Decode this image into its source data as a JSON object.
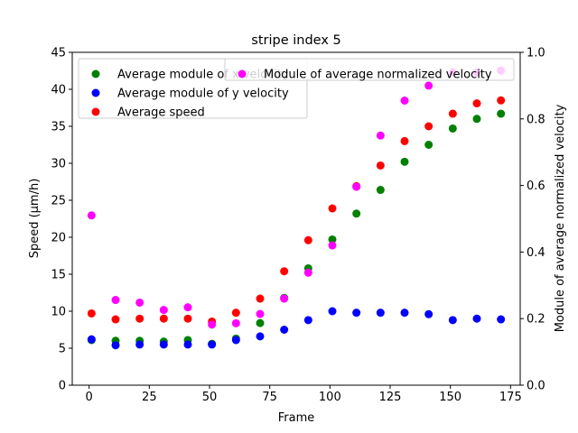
{
  "chart_data": {
    "type": "scatter",
    "title": "stripe index 5",
    "xlabel": "Frame",
    "ylabel": "Speed (μm/h)",
    "y2label": "Module of average normalized velocity",
    "xlim": [
      -7,
      179
    ],
    "ylim": [
      0,
      45
    ],
    "y2lim": [
      0.0,
      1.0
    ],
    "xticks": [
      0,
      25,
      50,
      75,
      100,
      125,
      150,
      175
    ],
    "xtick_labels": [
      "0",
      "25",
      "50",
      "75",
      "100",
      "125",
      "150",
      "175"
    ],
    "yticks": [
      0,
      5,
      10,
      15,
      20,
      25,
      30,
      35,
      40,
      45
    ],
    "ytick_labels": [
      "0",
      "5",
      "10",
      "15",
      "20",
      "25",
      "30",
      "35",
      "40",
      "45"
    ],
    "y2ticks": [
      0.0,
      0.2,
      0.4,
      0.6,
      0.8,
      1.0
    ],
    "y2tick_labels": [
      "0.0",
      "0.2",
      "0.4",
      "0.6",
      "0.8",
      "1.0"
    ],
    "legend_left": {
      "placement": "upper-left",
      "entries": [
        0,
        1,
        2
      ]
    },
    "legend_right": {
      "placement": "upper-right",
      "entries": [
        3
      ]
    },
    "x": [
      1,
      11,
      21,
      31,
      41,
      51,
      61,
      71,
      81,
      91,
      101,
      111,
      121,
      131,
      141,
      151,
      161,
      171
    ],
    "series": [
      {
        "name": "Average module of x velocity",
        "color": "#008000",
        "axis": "left",
        "values": [
          6.1,
          6.0,
          6.0,
          5.9,
          6.1,
          5.6,
          6.3,
          8.4,
          11.8,
          15.8,
          19.7,
          23.2,
          26.4,
          30.2,
          32.5,
          34.7,
          36.0,
          36.7
        ]
      },
      {
        "name": "Average module of y velocity",
        "color": "#0000ff",
        "axis": "left",
        "values": [
          6.2,
          5.4,
          5.5,
          5.5,
          5.5,
          5.5,
          6.1,
          6.6,
          7.5,
          8.8,
          10.0,
          9.8,
          9.8,
          9.8,
          9.6,
          8.8,
          9.0,
          8.9
        ]
      },
      {
        "name": "Average speed",
        "color": "#ff0000",
        "axis": "left",
        "values": [
          9.7,
          8.9,
          9.0,
          9.0,
          9.0,
          8.6,
          9.8,
          11.7,
          15.4,
          19.6,
          23.9,
          26.9,
          29.7,
          33.0,
          35.0,
          36.7,
          38.1,
          38.5
        ]
      },
      {
        "name": "Module of average normalized velocity",
        "color": "#ff00ff",
        "axis": "right",
        "values": [
          0.51,
          0.256,
          0.248,
          0.226,
          0.234,
          0.182,
          0.186,
          0.214,
          0.26,
          0.338,
          0.42,
          0.596,
          0.75,
          0.855,
          0.9,
          0.94,
          0.94,
          0.945
        ]
      }
    ]
  }
}
